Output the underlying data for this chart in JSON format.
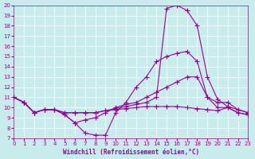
{
  "xlabel": "Windchill (Refroidissement éolien,°C)",
  "background_color": "#c8ecec",
  "line_color": "#990099",
  "xlim": [
    0,
    23
  ],
  "ylim": [
    7,
    20
  ],
  "xticks": [
    0,
    1,
    2,
    3,
    4,
    5,
    6,
    7,
    8,
    9,
    10,
    11,
    12,
    13,
    14,
    15,
    16,
    17,
    18,
    19,
    20,
    21,
    22,
    23
  ],
  "yticks": [
    7,
    8,
    9,
    10,
    11,
    12,
    13,
    14,
    15,
    16,
    17,
    18,
    19,
    20
  ],
  "line1_x": [
    0,
    1,
    2,
    3,
    4,
    5,
    6,
    7,
    8,
    9,
    10,
    11,
    12,
    13,
    14,
    15,
    16,
    17,
    18,
    19,
    20,
    21,
    22,
    23
  ],
  "line1_y": [
    11.0,
    10.5,
    9.5,
    9.8,
    9.8,
    9.3,
    8.5,
    7.5,
    7.3,
    7.3,
    9.5,
    10.5,
    12.0,
    13.0,
    14.5,
    15.0,
    15.3,
    15.5,
    14.5,
    11.0,
    10.0,
    10.0,
    9.5,
    9.3
  ],
  "line2_x": [
    0,
    1,
    2,
    3,
    4,
    5,
    6,
    7,
    8,
    9,
    10,
    11,
    12,
    13,
    14,
    15,
    16,
    17,
    18,
    19,
    20,
    21,
    22,
    23
  ],
  "line2_y": [
    11.0,
    10.5,
    9.5,
    9.8,
    9.8,
    9.3,
    8.5,
    8.8,
    9.0,
    9.5,
    10.0,
    10.3,
    10.5,
    11.0,
    11.5,
    12.0,
    12.5,
    13.0,
    13.0,
    11.0,
    10.5,
    10.5,
    9.8,
    9.5
  ],
  "line3_x": [
    0,
    1,
    2,
    3,
    4,
    5,
    6,
    7,
    8,
    9,
    10,
    11,
    12,
    13,
    14,
    15,
    16,
    17,
    18,
    19,
    20,
    21,
    22,
    23
  ],
  "line3_y": [
    11.0,
    10.5,
    9.5,
    9.8,
    9.8,
    9.5,
    9.5,
    9.5,
    9.5,
    9.7,
    9.8,
    9.9,
    10.0,
    10.1,
    10.1,
    10.1,
    10.1,
    10.0,
    9.9,
    9.8,
    9.7,
    10.0,
    9.5,
    9.3
  ],
  "line4_x": [
    0,
    1,
    2,
    3,
    4,
    5,
    6,
    7,
    8,
    9,
    10,
    11,
    12,
    13,
    14,
    15,
    16,
    17,
    18,
    19,
    20,
    21,
    22,
    23
  ],
  "line4_y": [
    11.0,
    10.5,
    9.5,
    9.8,
    9.8,
    9.5,
    9.5,
    9.5,
    9.5,
    9.7,
    9.9,
    10.1,
    10.3,
    10.5,
    11.0,
    19.7,
    20.0,
    19.5,
    18.0,
    13.0,
    10.8,
    10.1,
    9.8,
    9.5
  ]
}
